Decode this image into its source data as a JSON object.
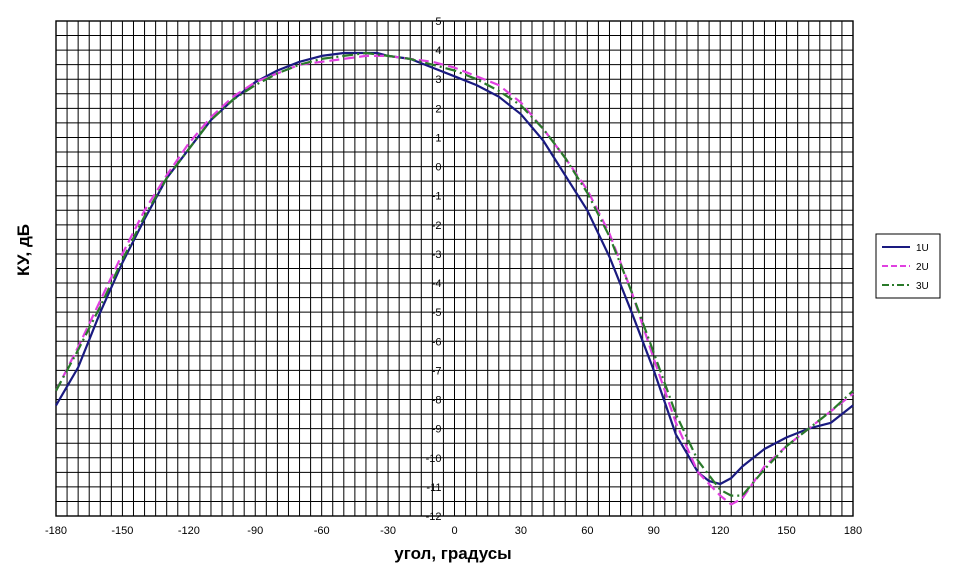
{
  "chart_data": {
    "type": "line",
    "title": "",
    "xlabel": "угол, градусы",
    "ylabel": "КУ, дБ",
    "xlim": [
      -180,
      180
    ],
    "ylim": [
      -12,
      5
    ],
    "x_major_ticks": [
      -180,
      -150,
      -120,
      -90,
      -60,
      -30,
      0,
      30,
      60,
      90,
      120,
      150,
      180
    ],
    "x_tick_labels": [
      "-180",
      "-150",
      "-120",
      "-90",
      "-60",
      "-30",
      "0",
      "30",
      "60",
      "90",
      "120",
      "150",
      "180"
    ],
    "y_ticks": [
      5,
      4,
      3,
      2,
      1,
      0,
      -1,
      -2,
      -3,
      -4,
      -5,
      -6,
      -7,
      -8,
      -9,
      -10,
      -11,
      -12
    ],
    "y_tick_labels": [
      "5",
      "4",
      "3",
      "2",
      "1",
      "0",
      "-1",
      "-2",
      "-3",
      "-4",
      "-5",
      "-6",
      "-7",
      "-8",
      "-9",
      "-10",
      "-11",
      "-12"
    ],
    "grid": true,
    "legend_position": "right",
    "series": [
      {
        "name": "1U",
        "color": "#1a1a80",
        "dash": "solid",
        "points": [
          [
            -180,
            -8.2
          ],
          [
            -170,
            -6.9
          ],
          [
            -160,
            -5.0
          ],
          [
            -150,
            -3.3
          ],
          [
            -140,
            -1.8
          ],
          [
            -130,
            -0.4
          ],
          [
            -120,
            0.6
          ],
          [
            -110,
            1.6
          ],
          [
            -100,
            2.3
          ],
          [
            -90,
            2.9
          ],
          [
            -80,
            3.3
          ],
          [
            -70,
            3.6
          ],
          [
            -60,
            3.8
          ],
          [
            -50,
            3.9
          ],
          [
            -40,
            3.9
          ],
          [
            -35,
            3.9
          ],
          [
            -30,
            3.8
          ],
          [
            -20,
            3.7
          ],
          [
            -10,
            3.4
          ],
          [
            0,
            3.1
          ],
          [
            10,
            2.8
          ],
          [
            20,
            2.4
          ],
          [
            30,
            1.8
          ],
          [
            40,
            0.9
          ],
          [
            50,
            -0.3
          ],
          [
            60,
            -1.5
          ],
          [
            70,
            -3.1
          ],
          [
            80,
            -5.0
          ],
          [
            90,
            -7.0
          ],
          [
            100,
            -9.2
          ],
          [
            110,
            -10.5
          ],
          [
            115,
            -10.8
          ],
          [
            120,
            -10.9
          ],
          [
            125,
            -10.7
          ],
          [
            130,
            -10.3
          ],
          [
            140,
            -9.7
          ],
          [
            150,
            -9.3
          ],
          [
            160,
            -9.0
          ],
          [
            170,
            -8.8
          ],
          [
            180,
            -8.2
          ]
        ]
      },
      {
        "name": "2U",
        "color": "#e040e0",
        "dash": "dashed",
        "points": [
          [
            -180,
            -7.7
          ],
          [
            -170,
            -6.2
          ],
          [
            -160,
            -4.6
          ],
          [
            -150,
            -3.0
          ],
          [
            -140,
            -1.5
          ],
          [
            -130,
            -0.3
          ],
          [
            -120,
            0.8
          ],
          [
            -110,
            1.7
          ],
          [
            -100,
            2.4
          ],
          [
            -90,
            2.9
          ],
          [
            -80,
            3.2
          ],
          [
            -70,
            3.5
          ],
          [
            -60,
            3.6
          ],
          [
            -50,
            3.7
          ],
          [
            -40,
            3.8
          ],
          [
            -30,
            3.8
          ],
          [
            -20,
            3.7
          ],
          [
            -10,
            3.6
          ],
          [
            0,
            3.4
          ],
          [
            10,
            3.1
          ],
          [
            20,
            2.8
          ],
          [
            30,
            2.2
          ],
          [
            40,
            1.3
          ],
          [
            50,
            0.3
          ],
          [
            60,
            -0.8
          ],
          [
            70,
            -2.3
          ],
          [
            80,
            -4.3
          ],
          [
            90,
            -6.6
          ],
          [
            100,
            -8.8
          ],
          [
            110,
            -10.5
          ],
          [
            120,
            -11.3
          ],
          [
            125,
            -11.6
          ],
          [
            130,
            -11.4
          ],
          [
            140,
            -10.3
          ],
          [
            150,
            -9.6
          ],
          [
            160,
            -9.0
          ],
          [
            170,
            -8.4
          ],
          [
            180,
            -7.8
          ]
        ]
      },
      {
        "name": "3U",
        "color": "#2a7a2a",
        "dash": "dashdot",
        "points": [
          [
            -180,
            -7.7
          ],
          [
            -170,
            -6.3
          ],
          [
            -160,
            -4.8
          ],
          [
            -150,
            -3.2
          ],
          [
            -140,
            -1.7
          ],
          [
            -130,
            -0.4
          ],
          [
            -120,
            0.6
          ],
          [
            -110,
            1.6
          ],
          [
            -100,
            2.3
          ],
          [
            -90,
            2.8
          ],
          [
            -80,
            3.2
          ],
          [
            -70,
            3.5
          ],
          [
            -60,
            3.7
          ],
          [
            -50,
            3.8
          ],
          [
            -40,
            3.9
          ],
          [
            -30,
            3.8
          ],
          [
            -20,
            3.7
          ],
          [
            -10,
            3.5
          ],
          [
            0,
            3.3
          ],
          [
            10,
            3.0
          ],
          [
            20,
            2.6
          ],
          [
            30,
            2.1
          ],
          [
            40,
            1.3
          ],
          [
            50,
            0.3
          ],
          [
            60,
            -0.9
          ],
          [
            70,
            -2.4
          ],
          [
            80,
            -4.3
          ],
          [
            90,
            -6.4
          ],
          [
            100,
            -8.5
          ],
          [
            110,
            -10.1
          ],
          [
            120,
            -11.1
          ],
          [
            125,
            -11.3
          ],
          [
            130,
            -11.3
          ],
          [
            140,
            -10.4
          ],
          [
            150,
            -9.6
          ],
          [
            160,
            -9.0
          ],
          [
            170,
            -8.4
          ],
          [
            180,
            -7.7
          ]
        ]
      }
    ]
  }
}
